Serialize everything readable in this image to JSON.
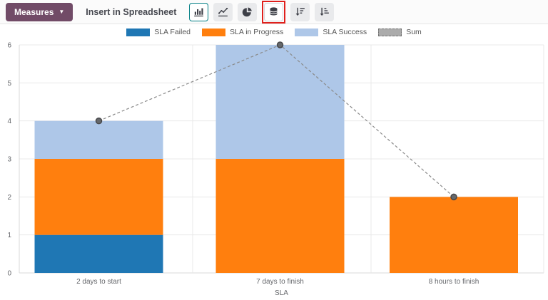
{
  "toolbar": {
    "measures_label": "Measures",
    "insert_label": "Insert in Spreadsheet",
    "chart_type_buttons": [
      {
        "name": "bar-chart",
        "active": true
      },
      {
        "name": "line-chart",
        "active": false
      },
      {
        "name": "pie-chart",
        "active": false
      },
      {
        "name": "stacked",
        "active": true,
        "annotated": true
      },
      {
        "name": "sort-descending",
        "active": false
      },
      {
        "name": "sort-ascending",
        "active": false
      }
    ]
  },
  "colors": {
    "accent_teal": "#017e84",
    "measures_purple": "#714B67",
    "annotation_red": "#e0201c",
    "grid": "#e8e8e8",
    "axis": "#d9d9d9",
    "label_text": "#65676b",
    "sum_line": "#8a8a8a",
    "sum_dot_fill": "#66686b",
    "sum_dot_stroke": "#47484a"
  },
  "chart_data": {
    "type": "bar",
    "stacked": true,
    "title": "",
    "xlabel": "SLA",
    "ylabel": "",
    "ylim": [
      0,
      6
    ],
    "yticks": [
      0,
      1,
      2,
      3,
      4,
      5,
      6
    ],
    "grid": true,
    "legend_position": "top",
    "categories": [
      "2 days to start",
      "7 days to finish",
      "8 hours to finish"
    ],
    "series": [
      {
        "name": "SLA Failed",
        "color": "#1f77b4",
        "values": [
          1,
          0,
          0
        ]
      },
      {
        "name": "SLA in Progress",
        "color": "#ff7f0e",
        "values": [
          2,
          3,
          2
        ]
      },
      {
        "name": "SLA Success",
        "color": "#aec7e8",
        "values": [
          1,
          3,
          0
        ]
      }
    ],
    "sum_series": {
      "name": "Sum",
      "values": [
        4,
        6,
        2
      ]
    }
  }
}
